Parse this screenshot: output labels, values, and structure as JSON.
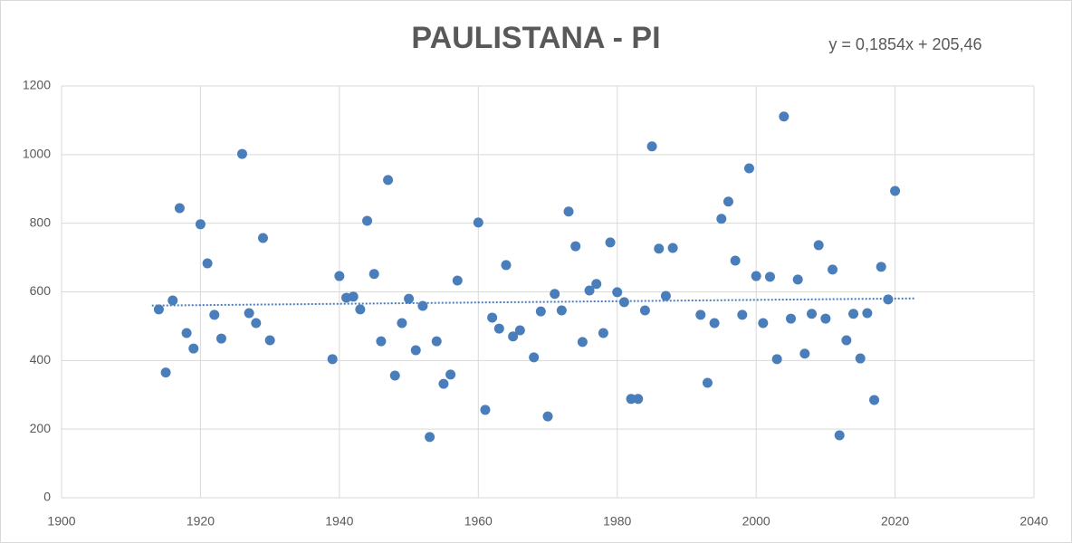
{
  "chart_data": {
    "type": "scatter",
    "title": "PAULISTANA - PI",
    "annotation": "y = 0,1854x + 205,46",
    "x": [
      1914,
      1915,
      1916,
      1917,
      1918,
      1919,
      1920,
      1921,
      1922,
      1923,
      1926,
      1927,
      1928,
      1929,
      1930,
      1939,
      1940,
      1941,
      1942,
      1943,
      1944,
      1945,
      1946,
      1947,
      1948,
      1949,
      1950,
      1951,
      1952,
      1953,
      1954,
      1955,
      1956,
      1957,
      1960,
      1961,
      1962,
      1963,
      1964,
      1965,
      1966,
      1968,
      1969,
      1970,
      1971,
      1972,
      1973,
      1974,
      1975,
      1976,
      1977,
      1978,
      1979,
      1980,
      1981,
      1982,
      1983,
      1984,
      1985,
      1986,
      1987,
      1988,
      1992,
      1993,
      1994,
      1995,
      1996,
      1997,
      1998,
      1999,
      2000,
      2001,
      2002,
      2003,
      2004,
      2005,
      2006,
      2007,
      2008,
      2009,
      2010,
      2011,
      2012,
      2013,
      2014,
      2015,
      2016,
      2017,
      2018,
      2019,
      2020
    ],
    "values": [
      549,
      365,
      575,
      844,
      480,
      435,
      797,
      683,
      533,
      464,
      1002,
      538,
      509,
      757,
      459,
      404,
      646,
      583,
      586,
      549,
      807,
      652,
      456,
      926,
      356,
      509,
      580,
      430,
      559,
      177,
      456,
      332,
      359,
      633,
      802,
      256,
      525,
      493,
      678,
      470,
      488,
      409,
      543,
      237,
      594,
      546,
      834,
      733,
      454,
      604,
      623,
      480,
      744,
      599,
      570,
      288,
      288,
      546,
      1024,
      726,
      588,
      728,
      533,
      335,
      509,
      813,
      863,
      691,
      533,
      960,
      646,
      509,
      644,
      404,
      1111,
      522,
      636,
      420,
      536,
      736,
      522,
      665,
      182,
      459,
      536,
      406,
      538,
      285,
      673,
      578,
      894
    ],
    "color": "#4a7ebb",
    "trendline": {
      "x": [
        1913,
        2023
      ],
      "values": [
        560,
        581
      ],
      "color": "#4a7ebb"
    },
    "xlim": [
      1900,
      2040
    ],
    "xticks": [
      1900,
      1920,
      1940,
      1960,
      1980,
      2000,
      2020,
      2040
    ],
    "ylim": [
      0,
      1200
    ],
    "yticks": [
      0,
      200,
      400,
      600,
      800,
      1000,
      1200
    ],
    "grid": true
  }
}
